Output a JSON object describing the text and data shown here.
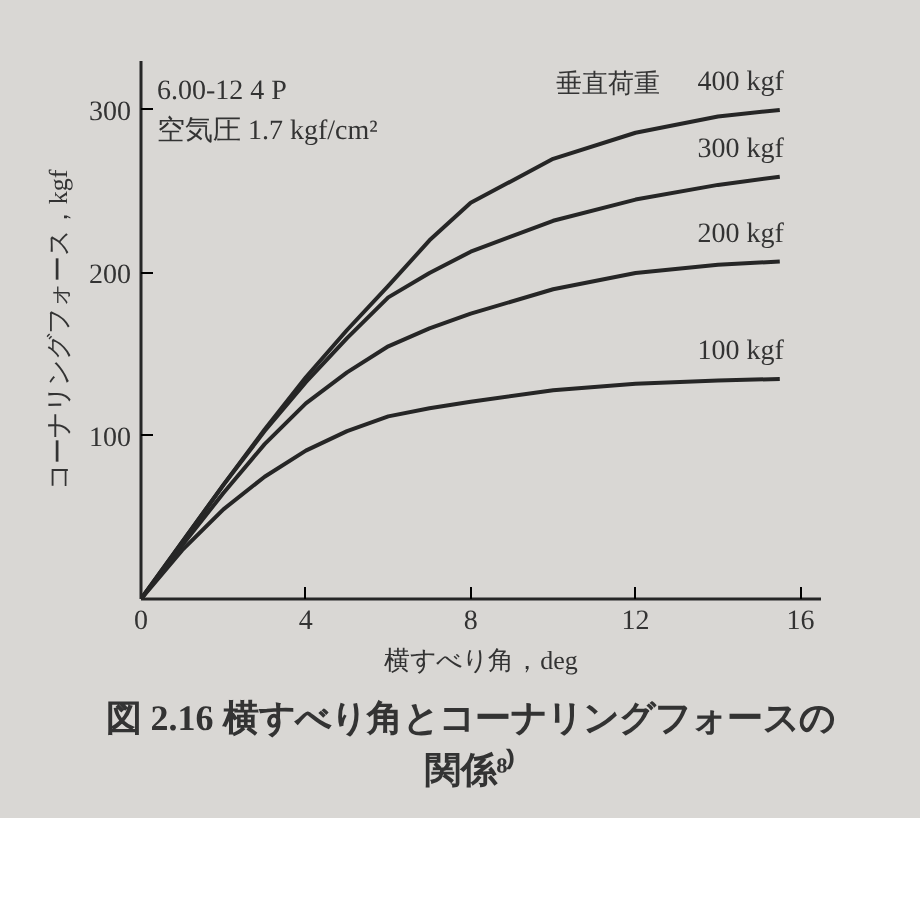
{
  "chart_data": {
    "type": "line",
    "title": "図 2.16 横すべり角とコーナリングフォースの関係⁸⁾",
    "xlabel": "横すべり角，deg",
    "ylabel": "コーナリングフォース，kgf",
    "xlim": [
      0,
      16.5
    ],
    "ylim": [
      0,
      330
    ],
    "xticks": [
      0,
      4,
      8,
      12,
      16
    ],
    "yticks": [
      100,
      200,
      300
    ],
    "grid": false,
    "marker": "none",
    "line_style": "solid",
    "annotations": [
      "垂直荷重",
      "6.00-12 4 P",
      "空気圧 1.7 kgf/cm²"
    ],
    "x": [
      0,
      1,
      2,
      3,
      4,
      5,
      6,
      7,
      8,
      10,
      12,
      14,
      15.5
    ],
    "series": [
      {
        "name": "400 kgf",
        "color": "#262626",
        "values": [
          0,
          35,
          70,
          104,
          136,
          165,
          192,
          220,
          243,
          270,
          286,
          296,
          300
        ]
      },
      {
        "name": "300 kgf",
        "color": "#262626",
        "values": [
          0,
          35,
          70,
          103,
          133,
          160,
          185,
          200,
          213,
          232,
          245,
          254,
          259
        ]
      },
      {
        "name": "200 kgf",
        "color": "#262626",
        "values": [
          0,
          33,
          65,
          95,
          120,
          139,
          155,
          166,
          175,
          190,
          200,
          205,
          207
        ]
      },
      {
        "name": "100 kgf",
        "color": "#262626",
        "values": [
          0,
          30,
          55,
          75,
          91,
          103,
          112,
          117,
          121,
          128,
          132,
          134,
          135
        ]
      }
    ]
  }
}
